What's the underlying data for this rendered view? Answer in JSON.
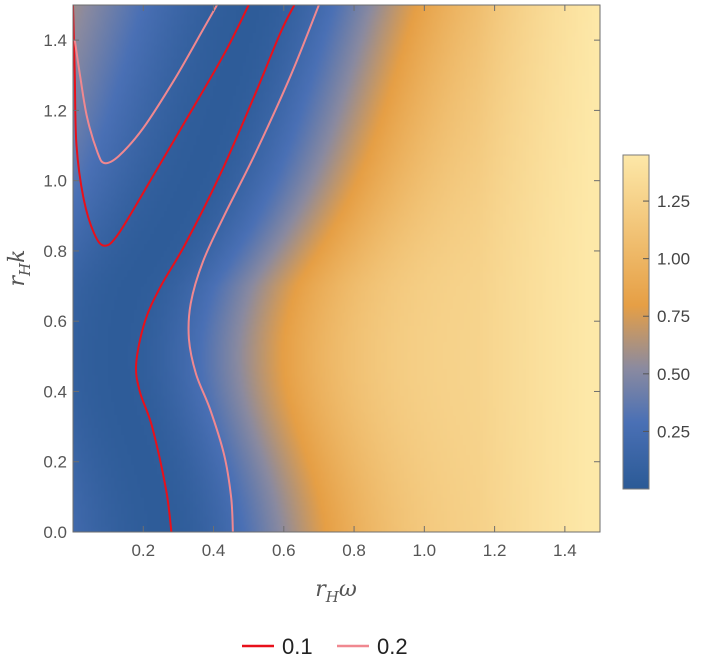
{
  "chart_data": {
    "type": "heatmap",
    "title": "",
    "xlabel": {
      "base": "r",
      "sub": "H",
      "var": "ω"
    },
    "ylabel": {
      "base": "r",
      "sub": "H",
      "var": "k"
    },
    "xlim": [
      0.0,
      1.5
    ],
    "ylim": [
      0.0,
      1.5
    ],
    "x_ticks": [
      "0.2",
      "0.4",
      "0.6",
      "0.8",
      "1.0",
      "1.2",
      "1.4"
    ],
    "y_ticks": [
      "0.0",
      "0.2",
      "0.4",
      "0.6",
      "0.8",
      "1.0",
      "1.2",
      "1.4"
    ],
    "colorbar": {
      "range": [
        0.0,
        1.45
      ],
      "ticks": [
        "0.25",
        "0.50",
        "0.75",
        "1.00",
        "1.25"
      ],
      "colors": [
        "#2b5a96",
        "#4a70b5",
        "#8a8aa0",
        "#e69f45",
        "#fde8a8"
      ]
    },
    "contours": [
      {
        "label": "0.1",
        "color": "#e8101a",
        "paths": [
          [
            [
              0.28,
              0.0
            ],
            [
              0.265,
              0.12
            ],
            [
              0.225,
              0.3
            ],
            [
              0.19,
              0.4
            ],
            [
              0.18,
              0.48
            ],
            [
              0.205,
              0.6
            ],
            [
              0.25,
              0.7
            ],
            [
              0.32,
              0.82
            ],
            [
              0.42,
              1.02
            ],
            [
              0.52,
              1.25
            ],
            [
              0.59,
              1.42
            ],
            [
              0.63,
              1.5
            ]
          ],
          [
            [
              0.0,
              1.5
            ],
            [
              0.005,
              1.3
            ],
            [
              0.01,
              1.1
            ],
            [
              0.03,
              0.95
            ],
            [
              0.06,
              0.85
            ],
            [
              0.09,
              0.815
            ],
            [
              0.13,
              0.85
            ],
            [
              0.22,
              1.0
            ],
            [
              0.32,
              1.17
            ],
            [
              0.43,
              1.36
            ],
            [
              0.5,
              1.5
            ]
          ]
        ]
      },
      {
        "label": "0.2",
        "color": "#f08890",
        "paths": [
          [
            [
              0.455,
              0.0
            ],
            [
              0.45,
              0.1
            ],
            [
              0.43,
              0.22
            ],
            [
              0.39,
              0.35
            ],
            [
              0.35,
              0.45
            ],
            [
              0.33,
              0.55
            ],
            [
              0.335,
              0.65
            ],
            [
              0.37,
              0.77
            ],
            [
              0.43,
              0.9
            ],
            [
              0.52,
              1.08
            ],
            [
              0.62,
              1.3
            ],
            [
              0.7,
              1.5
            ]
          ],
          [
            [
              0.005,
              1.4
            ],
            [
              0.02,
              1.3
            ],
            [
              0.04,
              1.18
            ],
            [
              0.07,
              1.08
            ],
            [
              0.09,
              1.05
            ],
            [
              0.13,
              1.07
            ],
            [
              0.2,
              1.15
            ],
            [
              0.29,
              1.29
            ],
            [
              0.37,
              1.43
            ],
            [
              0.41,
              1.5
            ]
          ]
        ]
      }
    ],
    "legend": {
      "placement": "bottom-center",
      "entries": [
        {
          "label": "0.1",
          "color": "#e8101a"
        },
        {
          "label": "0.2",
          "color": "#f08890"
        }
      ]
    }
  }
}
